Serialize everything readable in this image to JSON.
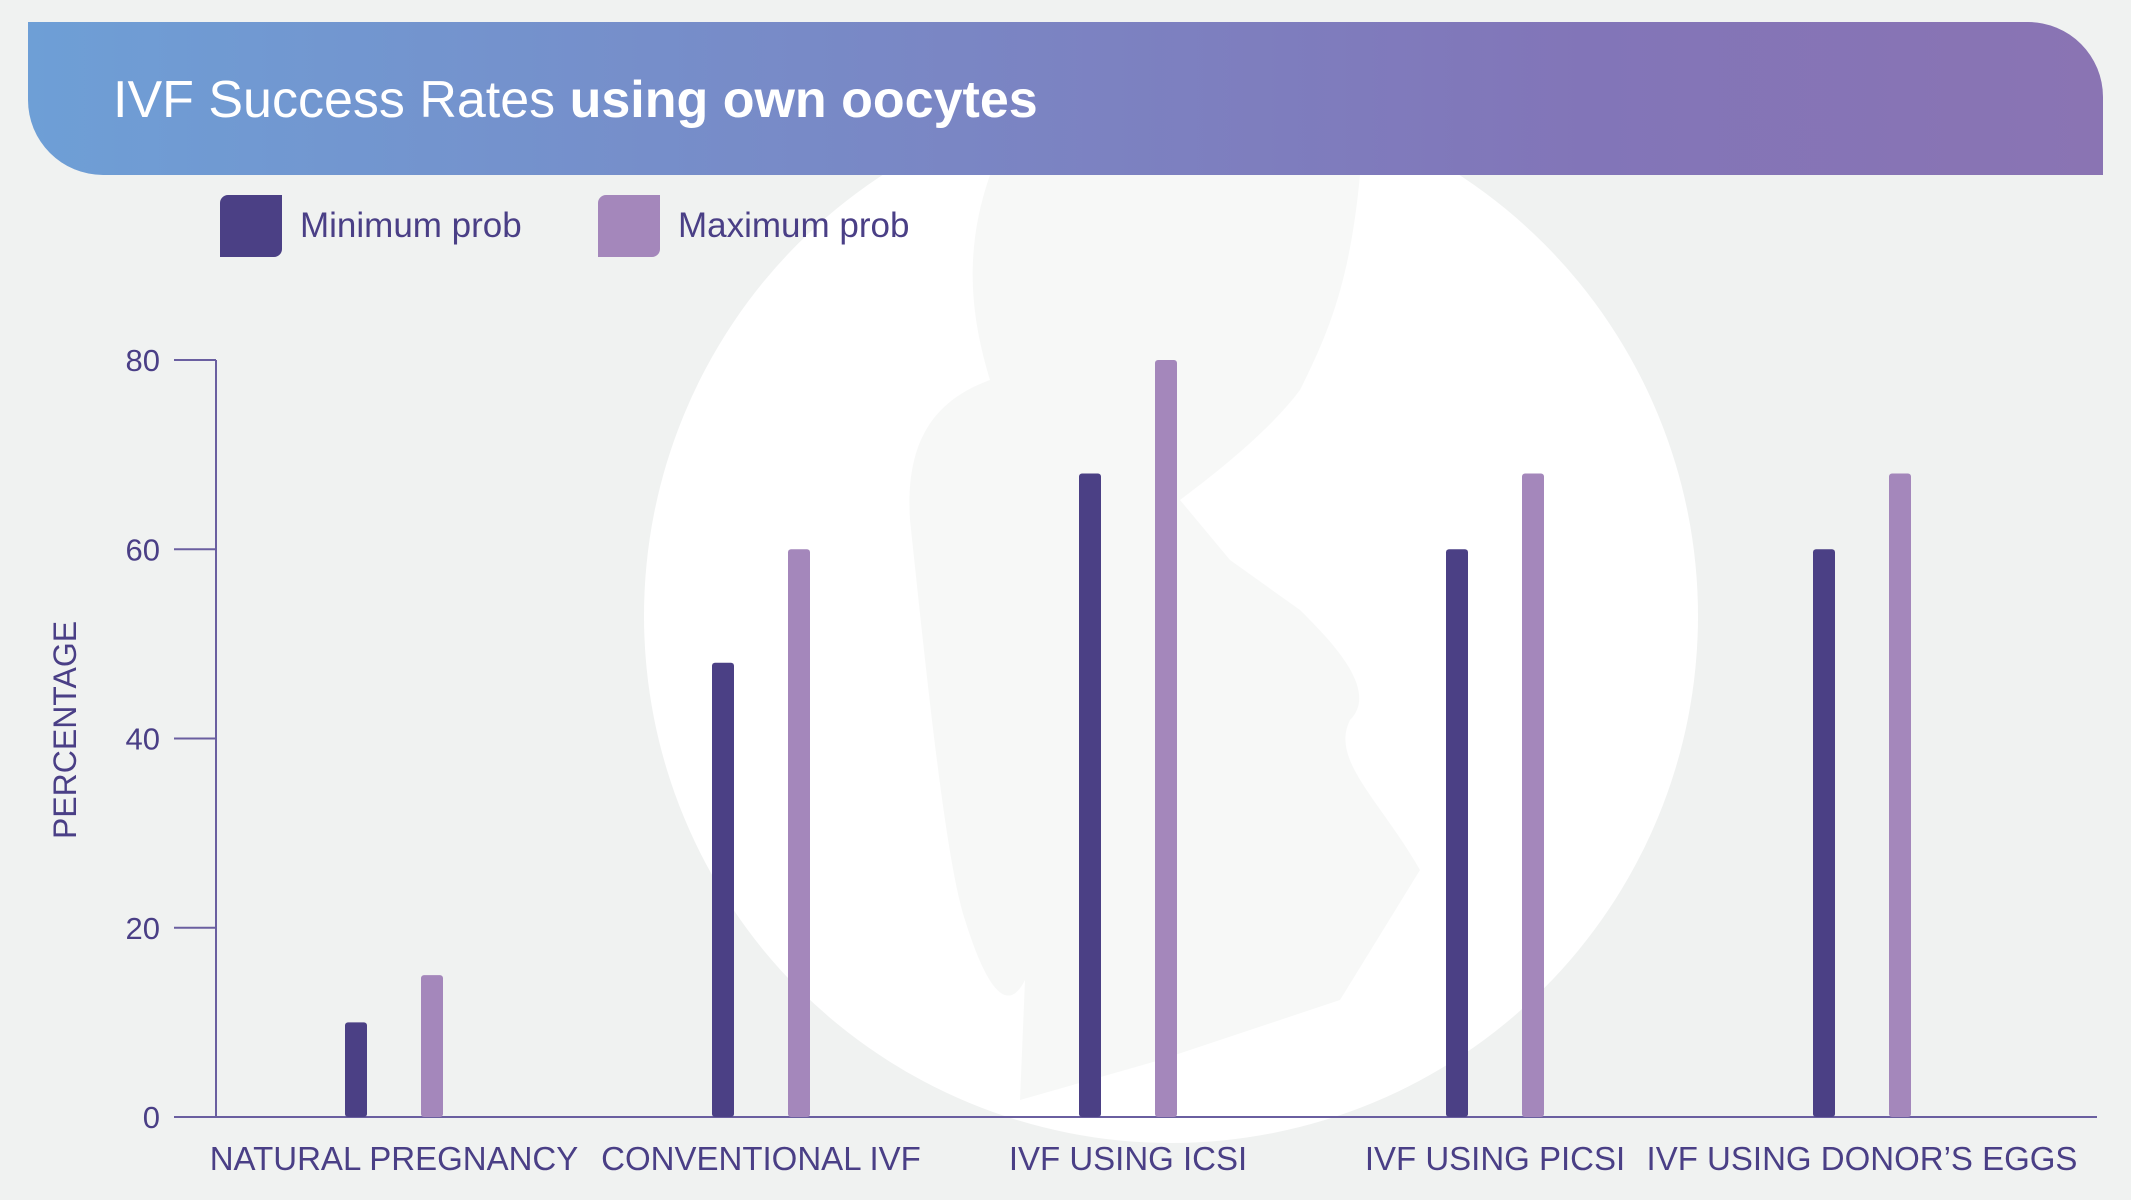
{
  "title": {
    "regular": "IVF Success Rates ",
    "bold": "using own oocytes"
  },
  "legend": [
    {
      "label": "Minimum prob",
      "color": "#4b4085"
    },
    {
      "label": "Maximum prob",
      "color": "#a487bb"
    }
  ],
  "chart_data": {
    "type": "bar",
    "title": "IVF Success Rates using own oocytes",
    "xlabel": "",
    "ylabel": "PERCENTAGE",
    "ylim": [
      0,
      80
    ],
    "yticks": [
      "0",
      "20",
      "40",
      "60",
      "80"
    ],
    "grid": false,
    "legend_position": "top-left",
    "categories": [
      "NATURAL PREGNANCY",
      "CONVENTIONAL IVF",
      "IVF USING ICSI",
      "IVF USING PICSI",
      "IVF USING DONOR’S EGGS"
    ],
    "series": [
      {
        "name": "Minimum prob",
        "values": [
          10,
          48,
          68,
          60,
          60
        ]
      },
      {
        "name": "Maximum prob",
        "values": [
          15,
          60,
          80,
          68,
          68
        ]
      }
    ]
  }
}
